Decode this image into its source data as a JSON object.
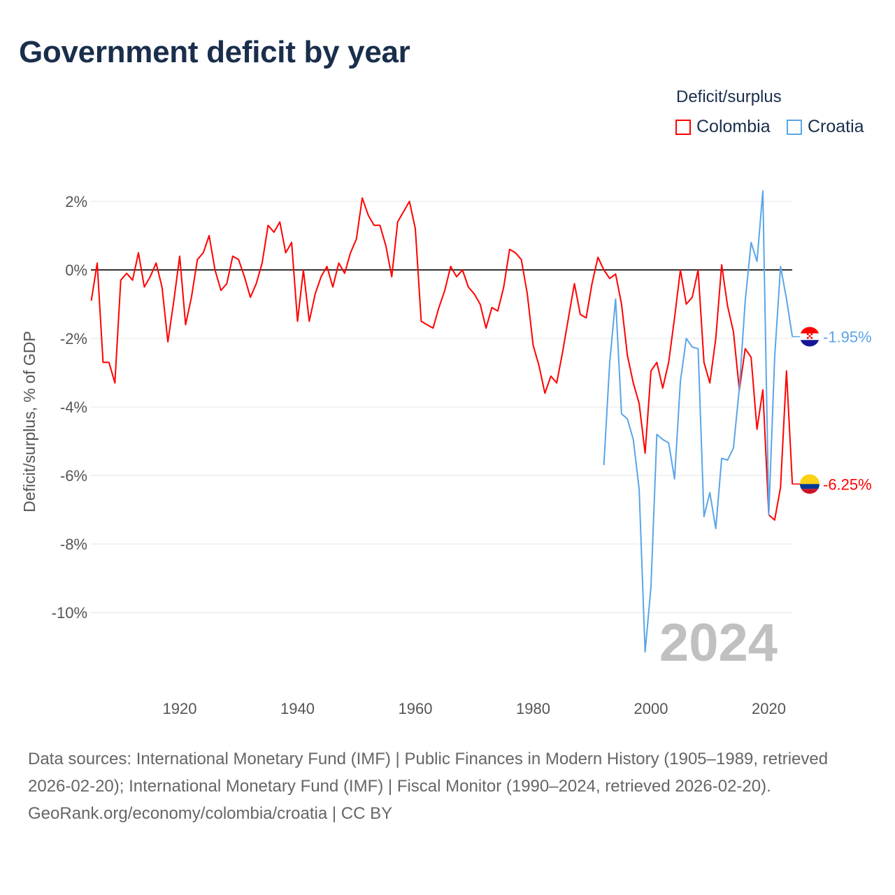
{
  "chart_data": {
    "type": "line",
    "title": "Government deficit by year",
    "ylabel": "Deficit/surplus, % of GDP",
    "xlabel": "",
    "legend_title": "Deficit/surplus",
    "legend_position": "top-right",
    "xlim": [
      1905,
      2024
    ],
    "ylim": [
      -11.8,
      2.4
    ],
    "x_ticks": [
      1920,
      1940,
      1960,
      1980,
      2000,
      2020
    ],
    "x_tick_labels": [
      "1920",
      "1940",
      "1960",
      "1980",
      "2000",
      "2020"
    ],
    "y_ticks": [
      2,
      0,
      -2,
      -4,
      -6,
      -8,
      -10
    ],
    "y_tick_labels": [
      "2%",
      "0%",
      "-2%",
      "-4%",
      "-6%",
      "-8%",
      "-10%"
    ],
    "grid": true,
    "year_watermark": "2024",
    "series": [
      {
        "name": "Colombia",
        "color": "#ff0000",
        "end_label": "-6.25%",
        "start_year": 1905,
        "values": [
          -0.9,
          0.2,
          -2.7,
          -2.7,
          -3.3,
          -0.3,
          -0.1,
          -0.3,
          0.5,
          -0.5,
          -0.2,
          0.2,
          -0.5,
          -2.1,
          -0.9,
          0.4,
          -1.6,
          -0.8,
          0.3,
          0.5,
          1.0,
          0.0,
          -0.6,
          -0.4,
          0.4,
          0.3,
          -0.2,
          -0.8,
          -0.4,
          0.2,
          1.3,
          1.1,
          1.4,
          0.5,
          0.8,
          -1.5,
          0.0,
          -1.5,
          -0.7,
          -0.2,
          0.1,
          -0.5,
          0.2,
          -0.1,
          0.5,
          0.9,
          2.1,
          1.6,
          1.3,
          1.3,
          0.7,
          -0.2,
          1.4,
          1.7,
          2.0,
          1.2,
          -1.5,
          -1.6,
          -1.7,
          -1.1,
          -0.6,
          0.1,
          -0.2,
          0.0,
          -0.5,
          -0.7,
          -1.0,
          -1.7,
          -1.1,
          -1.2,
          -0.5,
          0.6,
          0.5,
          0.3,
          -0.7,
          -2.2,
          -2.8,
          -3.6,
          -3.1,
          -3.3,
          -2.4,
          -1.4,
          -0.4,
          -1.3,
          -1.4,
          -0.4,
          0.37,
          0.0,
          -0.25,
          -0.12,
          -1.0,
          -2.5,
          -3.3,
          -3.9,
          -5.35,
          -2.95,
          -2.7,
          -3.45,
          -2.7,
          -1.4,
          0.0,
          -1.0,
          -0.8,
          0.0,
          -2.7,
          -3.3,
          -2.0,
          0.15,
          -1.05,
          -1.8,
          -3.5,
          -2.3,
          -2.55,
          -4.65,
          -3.5,
          -7.15,
          -7.3,
          -6.35,
          -2.95,
          -6.25
        ]
      },
      {
        "name": "Croatia",
        "color": "#5aa5e8",
        "end_label": "-1.95%",
        "start_year": 1992,
        "values": [
          -5.7,
          -2.7,
          -0.85,
          -4.2,
          -4.35,
          -4.95,
          -6.4,
          -11.15,
          -9.25,
          -4.8,
          -4.95,
          -5.05,
          -6.1,
          -3.25,
          -2.0,
          -2.25,
          -2.3,
          -7.2,
          -6.5,
          -7.55,
          -5.5,
          -5.55,
          -5.2,
          -3.45,
          -0.9,
          0.8,
          0.25,
          2.3,
          -7.15,
          -2.55,
          0.1,
          -0.85,
          -1.95
        ]
      }
    ]
  },
  "footer": {
    "sources": "Data sources: International Monetary Fund (IMF) | Public Finances in Modern History (1905–1989, retrieved 2026-02-20); International Monetary Fund (IMF) | Fiscal Monitor (1990–2024, retrieved 2026-02-20).",
    "credit": "GeoRank.org/economy/colombia/croatia | CC BY"
  }
}
